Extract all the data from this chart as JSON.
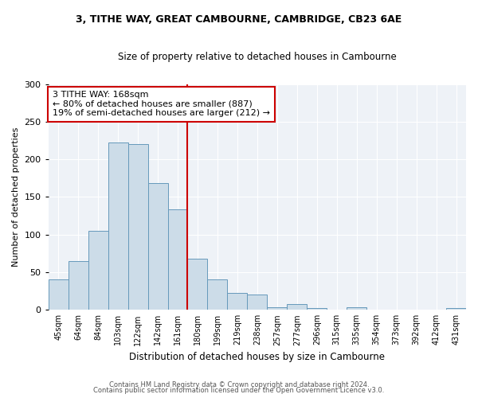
{
  "title1": "3, TITHE WAY, GREAT CAMBOURNE, CAMBRIDGE, CB23 6AE",
  "title2": "Size of property relative to detached houses in Cambourne",
  "xlabel": "Distribution of detached houses by size in Cambourne",
  "ylabel": "Number of detached properties",
  "bar_labels": [
    "45sqm",
    "64sqm",
    "84sqm",
    "103sqm",
    "122sqm",
    "142sqm",
    "161sqm",
    "180sqm",
    "199sqm",
    "219sqm",
    "238sqm",
    "257sqm",
    "277sqm",
    "296sqm",
    "315sqm",
    "335sqm",
    "354sqm",
    "373sqm",
    "392sqm",
    "412sqm",
    "431sqm"
  ],
  "bar_values": [
    40,
    65,
    105,
    222,
    220,
    168,
    134,
    68,
    40,
    22,
    20,
    3,
    8,
    2,
    0,
    3,
    0,
    0,
    0,
    0,
    2
  ],
  "bar_color": "#ccdce8",
  "bar_edge_color": "#6699bb",
  "vline_color": "#cc0000",
  "annotation_text": "3 TITHE WAY: 168sqm\n← 80% of detached houses are smaller (887)\n19% of semi-detached houses are larger (212) →",
  "annotation_box_color": "#ffffff",
  "annotation_box_edge": "#cc0000",
  "ylim": [
    0,
    300
  ],
  "yticks": [
    0,
    50,
    100,
    150,
    200,
    250,
    300
  ],
  "background_color": "#ffffff",
  "plot_bg_color": "#eef2f7",
  "grid_color": "#ffffff",
  "footer1": "Contains HM Land Registry data © Crown copyright and database right 2024.",
  "footer2": "Contains public sector information licensed under the Open Government Licence v3.0."
}
